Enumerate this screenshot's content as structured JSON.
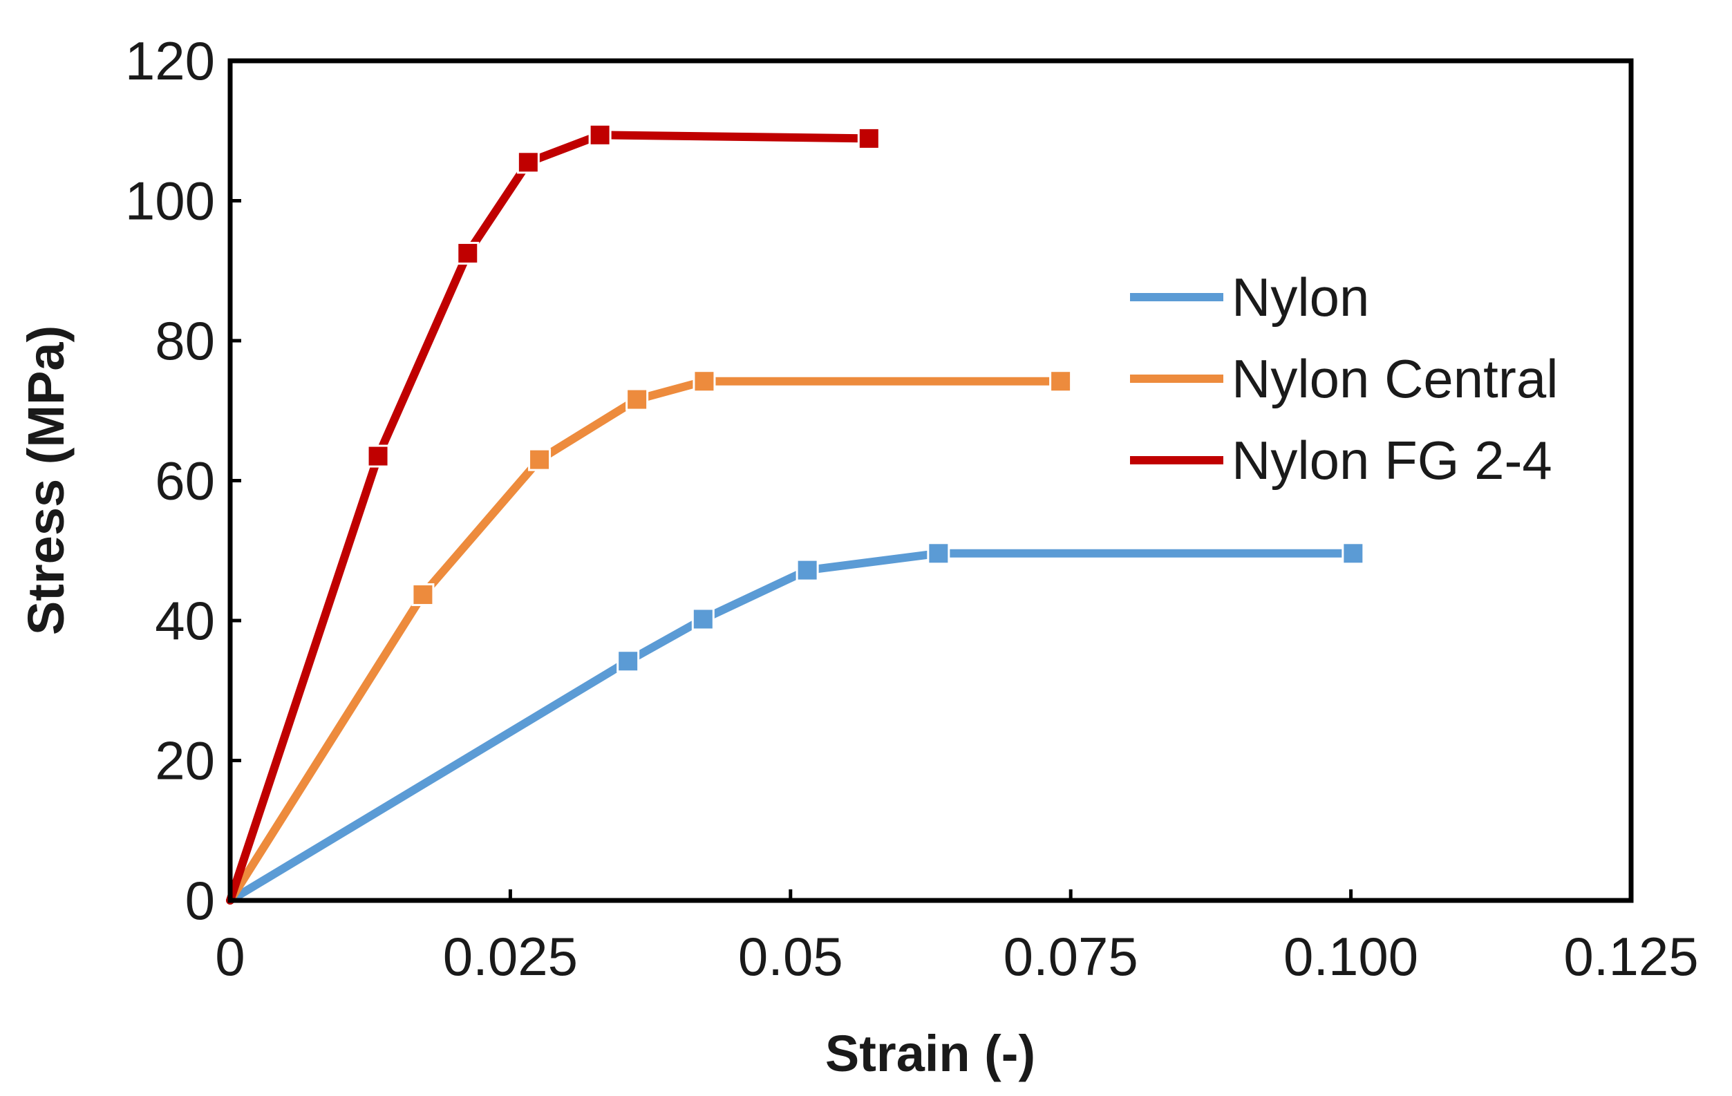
{
  "chart_data": {
    "type": "line",
    "title": "",
    "xlabel": "Strain (-)",
    "ylabel": "Stress (MPa)",
    "xlim": [
      0,
      0.125
    ],
    "ylim": [
      0,
      120
    ],
    "x_ticks": [
      "0",
      "0.025",
      "0.05",
      "0.075",
      "0.100",
      "0.125"
    ],
    "y_ticks": [
      "0",
      "20",
      "40",
      "60",
      "80",
      "100",
      "120"
    ],
    "grid": false,
    "legend": "center-right",
    "series": [
      {
        "name": "Nylon",
        "color": "#5b9bd5",
        "x": [
          0,
          0.0355,
          0.0422,
          0.0515,
          0.0632,
          0.1002
        ],
        "y": [
          0,
          34.2,
          40.2,
          47.2,
          49.6,
          49.6
        ]
      },
      {
        "name": "Nylon Central",
        "color": "#ed8b3d",
        "x": [
          0,
          0.0172,
          0.0276,
          0.0363,
          0.0423,
          0.0741
        ],
        "y": [
          0,
          43.7,
          63.0,
          71.6,
          74.2,
          74.2
        ]
      },
      {
        "name": "Nylon FG 2-4",
        "color": "#c00000",
        "x": [
          0,
          0.0132,
          0.0212,
          0.0266,
          0.033,
          0.057
        ],
        "y": [
          0,
          63.5,
          92.5,
          105.5,
          109.4,
          108.9
        ]
      }
    ]
  }
}
